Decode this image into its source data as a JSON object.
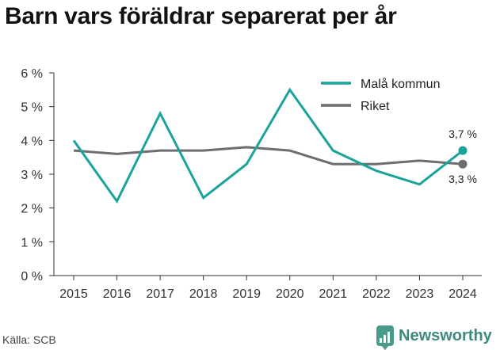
{
  "title": "Barn vars föräldrar separerat per år",
  "source": "Källa: SCB",
  "brand": "Newsworthy",
  "colors": {
    "series1": "#1aa399",
    "series2": "#6e6d72",
    "axis": "#333333",
    "brand": "#3e8a7c"
  },
  "chart_data": {
    "type": "line",
    "title": "Barn vars föräldrar separerat per år",
    "xlabel": "",
    "ylabel": "",
    "x": [
      2015,
      2016,
      2017,
      2018,
      2019,
      2020,
      2021,
      2022,
      2023,
      2024
    ],
    "y_ticks": [
      "0 %",
      "1 %",
      "2 %",
      "3 %",
      "4 %",
      "5 %",
      "6 %"
    ],
    "ylim": [
      0,
      6
    ],
    "grid": false,
    "legend": "top-right",
    "series": [
      {
        "name": "Malå kommun",
        "values": [
          4.0,
          2.2,
          4.8,
          2.3,
          3.3,
          5.5,
          3.7,
          3.1,
          2.7,
          3.7
        ],
        "end_label": "3,7 %"
      },
      {
        "name": "Riket",
        "values": [
          3.7,
          3.6,
          3.7,
          3.7,
          3.8,
          3.7,
          3.3,
          3.3,
          3.4,
          3.3
        ],
        "end_label": "3,3 %"
      }
    ]
  }
}
